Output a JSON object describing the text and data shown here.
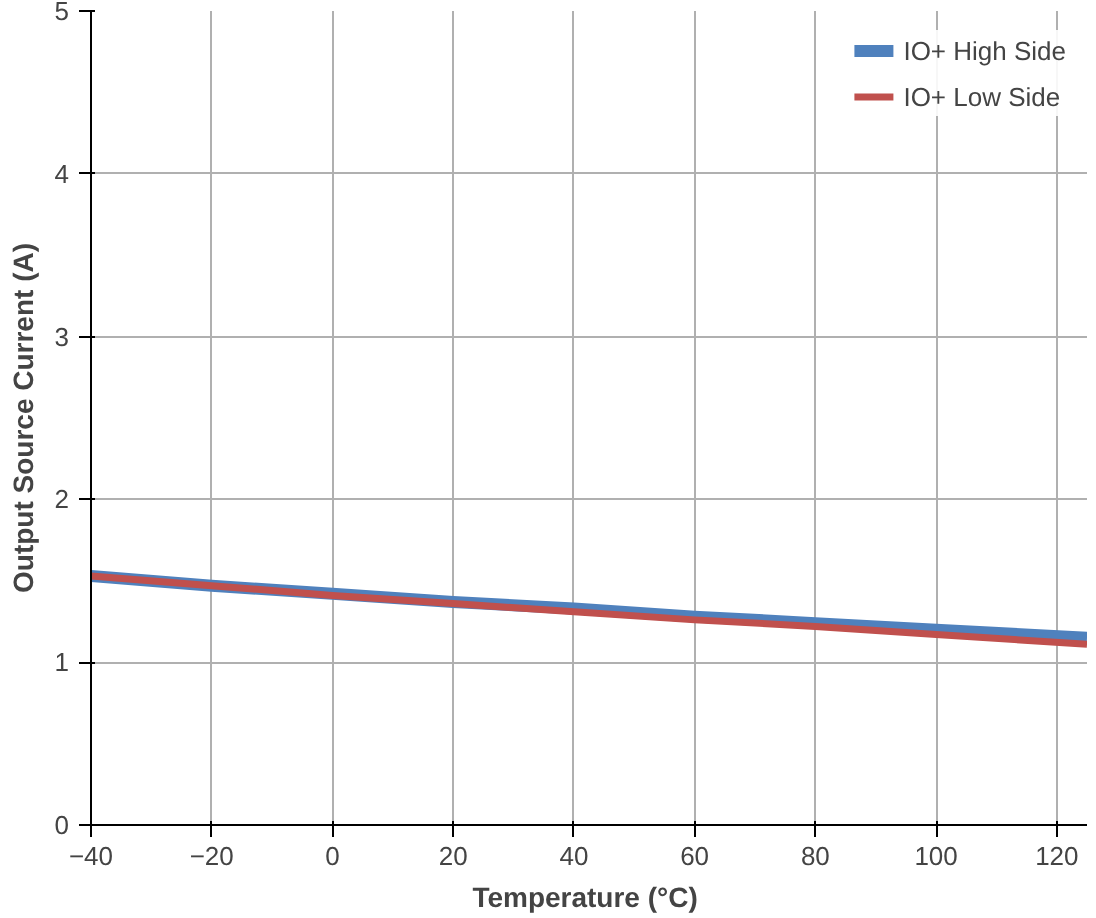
{
  "chart_data": {
    "type": "line",
    "xlabel": "Temperature  (°C)",
    "ylabel": "Output Source Current (A)",
    "series": [
      {
        "name": "IO+ High Side",
        "color": "#4f81bd",
        "x": [
          -40,
          -20,
          0,
          20,
          40,
          60,
          80,
          100,
          125
        ],
        "values": [
          1.53,
          1.47,
          1.42,
          1.37,
          1.33,
          1.28,
          1.24,
          1.2,
          1.15
        ]
      },
      {
        "name": "IO+ Low Side",
        "color": "#c0504d",
        "x": [
          -40,
          -20,
          0,
          20,
          40,
          60,
          80,
          100,
          125
        ],
        "values": [
          1.53,
          1.47,
          1.41,
          1.36,
          1.31,
          1.26,
          1.22,
          1.17,
          1.11
        ]
      }
    ],
    "xlim": [
      -40,
      125
    ],
    "ylim": [
      0,
      5
    ],
    "xticks": [
      -40,
      -20,
      0,
      20,
      40,
      60,
      80,
      100,
      120
    ],
    "yticks": [
      0,
      1,
      2,
      3,
      4,
      5
    ],
    "grid": true,
    "legend": "top right"
  }
}
